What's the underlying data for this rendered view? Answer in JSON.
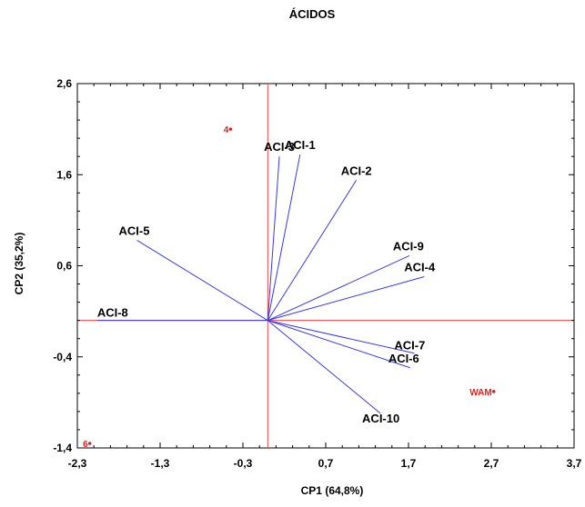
{
  "chart_data": {
    "type": "scatter",
    "subtype": "biplot",
    "title": "ÁCIDOS",
    "xlabel": "CP1 (64,8%)",
    "ylabel": "CP2 (35,2%)",
    "xlim": [
      -2.3,
      3.7
    ],
    "ylim": [
      -1.4,
      2.6
    ],
    "xticks": [
      -2.3,
      -1.3,
      -0.3,
      0.7,
      1.7,
      2.7,
      3.7
    ],
    "xtick_labels": [
      "-2,3",
      "-1,3",
      "-0,3",
      "0,7",
      "1,7",
      "2,7",
      "3,7"
    ],
    "yticks": [
      -1.4,
      -0.4,
      0.6,
      1.6,
      2.6
    ],
    "ytick_labels": [
      "-1,4",
      "-0,4",
      "0,6",
      "1,6",
      "2,6"
    ],
    "grid": false,
    "origin": [
      0,
      0
    ],
    "vector_color": "#3a3adf",
    "reference_line_color": "#e8484b",
    "observation_color": "#e02020",
    "vectors": [
      {
        "label": "ACI-1",
        "x": 0.39,
        "y": 1.82
      },
      {
        "label": "ACI-2",
        "x": 1.07,
        "y": 1.54
      },
      {
        "label": "ACI-3",
        "x": 0.14,
        "y": 1.8
      },
      {
        "label": "ACI-4",
        "x": 1.89,
        "y": 0.48
      },
      {
        "label": "ACI-5",
        "x": -1.58,
        "y": 0.88
      },
      {
        "label": "ACI-6",
        "x": 1.72,
        "y": -0.52
      },
      {
        "label": "ACI-7",
        "x": 1.77,
        "y": -0.36
      },
      {
        "label": "ACI-8",
        "x": -2.06,
        "y": 0.0
      },
      {
        "label": "ACI-9",
        "x": 1.71,
        "y": 0.71
      },
      {
        "label": "ACI-10",
        "x": 1.36,
        "y": -1.02
      }
    ],
    "observations": [
      {
        "label": "4",
        "x": -0.45,
        "y": 2.1
      },
      {
        "label": "WAM",
        "x": 2.73,
        "y": -0.78
      },
      {
        "label": "6",
        "x": -2.15,
        "y": -1.35
      }
    ]
  }
}
